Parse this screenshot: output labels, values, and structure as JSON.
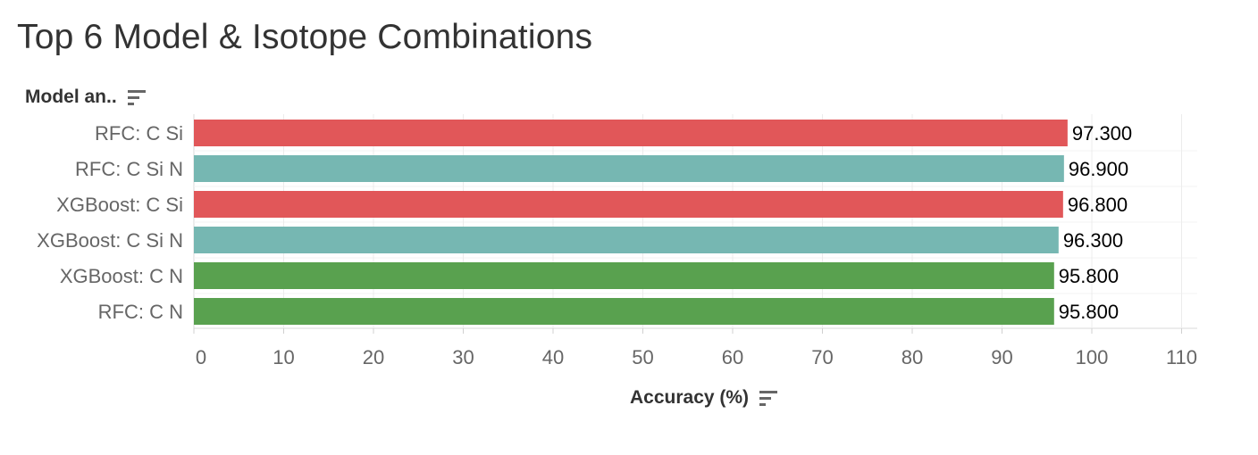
{
  "title": "Top 6 Model & Isotope Combinations",
  "row_header": "Model an..",
  "icons": {
    "row_sort": "sort-descending-icon",
    "axis_sort": "sort-descending-icon"
  },
  "colors": {
    "red": "#e15759",
    "teal": "#76b7b2",
    "green": "#59a14f"
  },
  "chart_data": {
    "type": "bar",
    "orientation": "horizontal",
    "categories": [
      "RFC: C Si",
      "RFC: C Si N",
      "XGBoost: C Si",
      "XGBoost: C Si N",
      "XGBoost: C N",
      "RFC: C N"
    ],
    "values": [
      97.3,
      96.9,
      96.8,
      96.3,
      95.8,
      95.8
    ],
    "value_labels": [
      "97.300",
      "96.900",
      "96.800",
      "96.300",
      "95.800",
      "95.800"
    ],
    "bar_colors": [
      "#e15759",
      "#76b7b2",
      "#e15759",
      "#76b7b2",
      "#59a14f",
      "#59a14f"
    ],
    "xlabel": "Accuracy (%)",
    "ylabel": "Model an..",
    "xlim": [
      0,
      110
    ],
    "xticks": [
      0,
      10,
      20,
      30,
      40,
      50,
      60,
      70,
      80,
      90,
      100,
      110
    ],
    "grid": true
  }
}
